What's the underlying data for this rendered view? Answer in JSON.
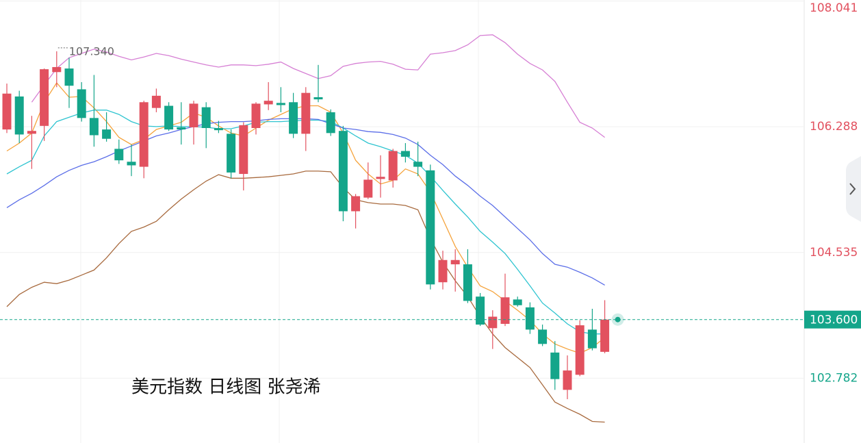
{
  "chart_data": {
    "type": "candlestick",
    "title": "美元指数 日线图 张尧浠",
    "open": [
      106.25,
      106.71,
      106.19,
      106.3,
      107.05,
      107.1,
      106.81,
      106.41,
      106.25,
      105.98,
      105.8,
      105.73,
      106.55,
      106.58,
      106.28,
      106.28,
      106.56,
      106.27,
      106.19,
      105.63,
      106.27,
      106.6,
      106.62,
      106.63,
      106.19,
      106.7,
      106.49,
      106.23,
      105.11,
      105.3,
      105.56,
      105.54,
      105.95,
      105.8,
      105.68,
      104.12,
      104.37,
      104.37,
      103.92,
      103.48,
      103.54,
      103.88,
      103.77,
      103.46,
      103.14,
      102.62,
      102.83,
      103.46,
      103.15
    ],
    "high": [
      106.89,
      106.79,
      106.44,
      107.1,
      107.34,
      107.25,
      106.91,
      107.01,
      106.49,
      106.11,
      106.04,
      106.65,
      106.82,
      106.63,
      106.63,
      106.65,
      106.63,
      106.37,
      106.25,
      106.35,
      106.63,
      106.91,
      106.84,
      106.76,
      106.84,
      107.15,
      106.53,
      106.3,
      105.35,
      105.79,
      105.89,
      105.98,
      106.06,
      106.08,
      105.76,
      104.56,
      104.58,
      104.58,
      103.97,
      103.73,
      104.24,
      103.92,
      103.84,
      103.53,
      103.3,
      103.1,
      103.59,
      103.75,
      103.87
    ],
    "low": [
      106.2,
      106.06,
      105.7,
      106.09,
      106.84,
      106.55,
      106.36,
      106.01,
      106.08,
      105.77,
      105.6,
      105.57,
      106.49,
      106.23,
      106.04,
      106.04,
      105.99,
      106.2,
      105.57,
      105.4,
      106.18,
      106.52,
      106.49,
      106.13,
      105.95,
      106.63,
      106.16,
      104.97,
      104.87,
      105.28,
      105.3,
      105.44,
      105.79,
      105.6,
      104.02,
      104.02,
      103.99,
      103.83,
      103.51,
      103.19,
      103.51,
      103.78,
      103.4,
      103.23,
      102.62,
      102.49,
      102.81,
      103.17,
      103.13
    ],
    "close": [
      106.75,
      106.18,
      106.23,
      107.09,
      107.12,
      106.86,
      106.41,
      106.17,
      106.12,
      105.82,
      105.75,
      106.63,
      106.72,
      106.25,
      106.25,
      106.61,
      106.27,
      106.24,
      105.65,
      106.31,
      106.61,
      106.65,
      106.59,
      106.19,
      106.76,
      106.67,
      106.2,
      105.11,
      105.32,
      105.55,
      105.59,
      105.95,
      105.87,
      105.73,
      104.09,
      104.43,
      104.43,
      103.86,
      103.53,
      103.64,
      103.91,
      103.8,
      103.46,
      103.26,
      102.77,
      102.89,
      103.52,
      103.2,
      103.6
    ],
    "up_color": "#e2515f",
    "down_color": "#14a58a",
    "lines": [
      {
        "color": "#f5a33c",
        "values": [
          105.95,
          106.06,
          106.2,
          106.63,
          106.9,
          106.7,
          106.71,
          106.55,
          106.36,
          106.14,
          106.04,
          106.11,
          106.25,
          106.3,
          106.35,
          106.48,
          106.42,
          106.3,
          106.2,
          106.16,
          106.27,
          106.38,
          106.46,
          106.54,
          106.58,
          106.58,
          106.49,
          106.2,
          105.82,
          105.63,
          105.49,
          105.54,
          105.7,
          105.63,
          105.38,
          105.0,
          104.62,
          104.33,
          104.07,
          103.99,
          103.86,
          103.73,
          103.59,
          103.4,
          103.26,
          103.19,
          103.13,
          103.21,
          103.35
        ]
      },
      {
        "color": "#2ec4d0",
        "values": [
          105.63,
          105.73,
          105.82,
          106.16,
          106.36,
          106.42,
          106.48,
          106.52,
          106.52,
          106.46,
          106.36,
          106.3,
          106.29,
          106.3,
          106.29,
          106.29,
          106.28,
          106.26,
          106.26,
          106.3,
          106.35,
          106.36,
          106.36,
          106.37,
          106.38,
          106.38,
          106.36,
          106.27,
          106.16,
          106.06,
          106.01,
          105.95,
          105.89,
          105.78,
          105.6,
          105.4,
          105.21,
          105.03,
          104.83,
          104.68,
          104.52,
          104.3,
          104.07,
          103.83,
          103.69,
          103.54,
          103.43,
          103.4,
          103.4
        ]
      },
      {
        "color": "#5b6ee8",
        "values": [
          105.16,
          105.27,
          105.36,
          105.47,
          105.59,
          105.68,
          105.75,
          105.8,
          105.87,
          105.95,
          106.02,
          106.09,
          106.16,
          106.2,
          106.25,
          106.29,
          106.33,
          106.35,
          106.36,
          106.36,
          106.37,
          106.39,
          106.4,
          106.4,
          106.4,
          106.39,
          106.33,
          106.27,
          106.25,
          106.22,
          106.21,
          106.18,
          106.13,
          106.04,
          105.89,
          105.76,
          105.6,
          105.47,
          105.32,
          105.19,
          105.03,
          104.87,
          104.71,
          104.52,
          104.37,
          104.33,
          104.26,
          104.18,
          104.08
        ]
      },
      {
        "color": "#d67fd4",
        "values": [
          null,
          null,
          106.63,
          106.87,
          107.1,
          107.25,
          107.31,
          107.37,
          107.33,
          107.27,
          107.22,
          107.26,
          107.31,
          107.28,
          107.23,
          107.19,
          107.15,
          107.12,
          107.15,
          107.15,
          107.14,
          107.16,
          107.19,
          107.1,
          107.03,
          106.96,
          107.0,
          107.13,
          107.17,
          107.19,
          107.2,
          107.16,
          107.09,
          107.08,
          107.3,
          107.32,
          107.35,
          107.43,
          107.56,
          107.57,
          107.46,
          107.3,
          107.17,
          107.08,
          106.92,
          106.63,
          106.35,
          106.27,
          106.14
        ]
      },
      {
        "color": "#a86a3e",
        "values": [
          103.78,
          103.95,
          104.05,
          104.12,
          104.1,
          104.15,
          104.22,
          104.29,
          104.46,
          104.66,
          104.83,
          104.89,
          104.97,
          105.13,
          105.28,
          105.41,
          105.53,
          105.62,
          105.57,
          105.57,
          105.58,
          105.59,
          105.61,
          105.63,
          105.67,
          105.67,
          105.66,
          105.44,
          105.27,
          105.23,
          105.21,
          105.21,
          105.19,
          105.13,
          104.73,
          104.4,
          104.14,
          103.92,
          103.64,
          103.4,
          103.21,
          103.07,
          102.93,
          102.69,
          102.45,
          102.36,
          102.28,
          102.18,
          102.17
        ]
      }
    ],
    "high_label": "107.340",
    "last_label": "103.600",
    "ylim": [
      101.879,
      108.055
    ],
    "yticks": [
      108.041,
      106.288,
      104.535,
      102.782
    ],
    "grid": true
  }
}
